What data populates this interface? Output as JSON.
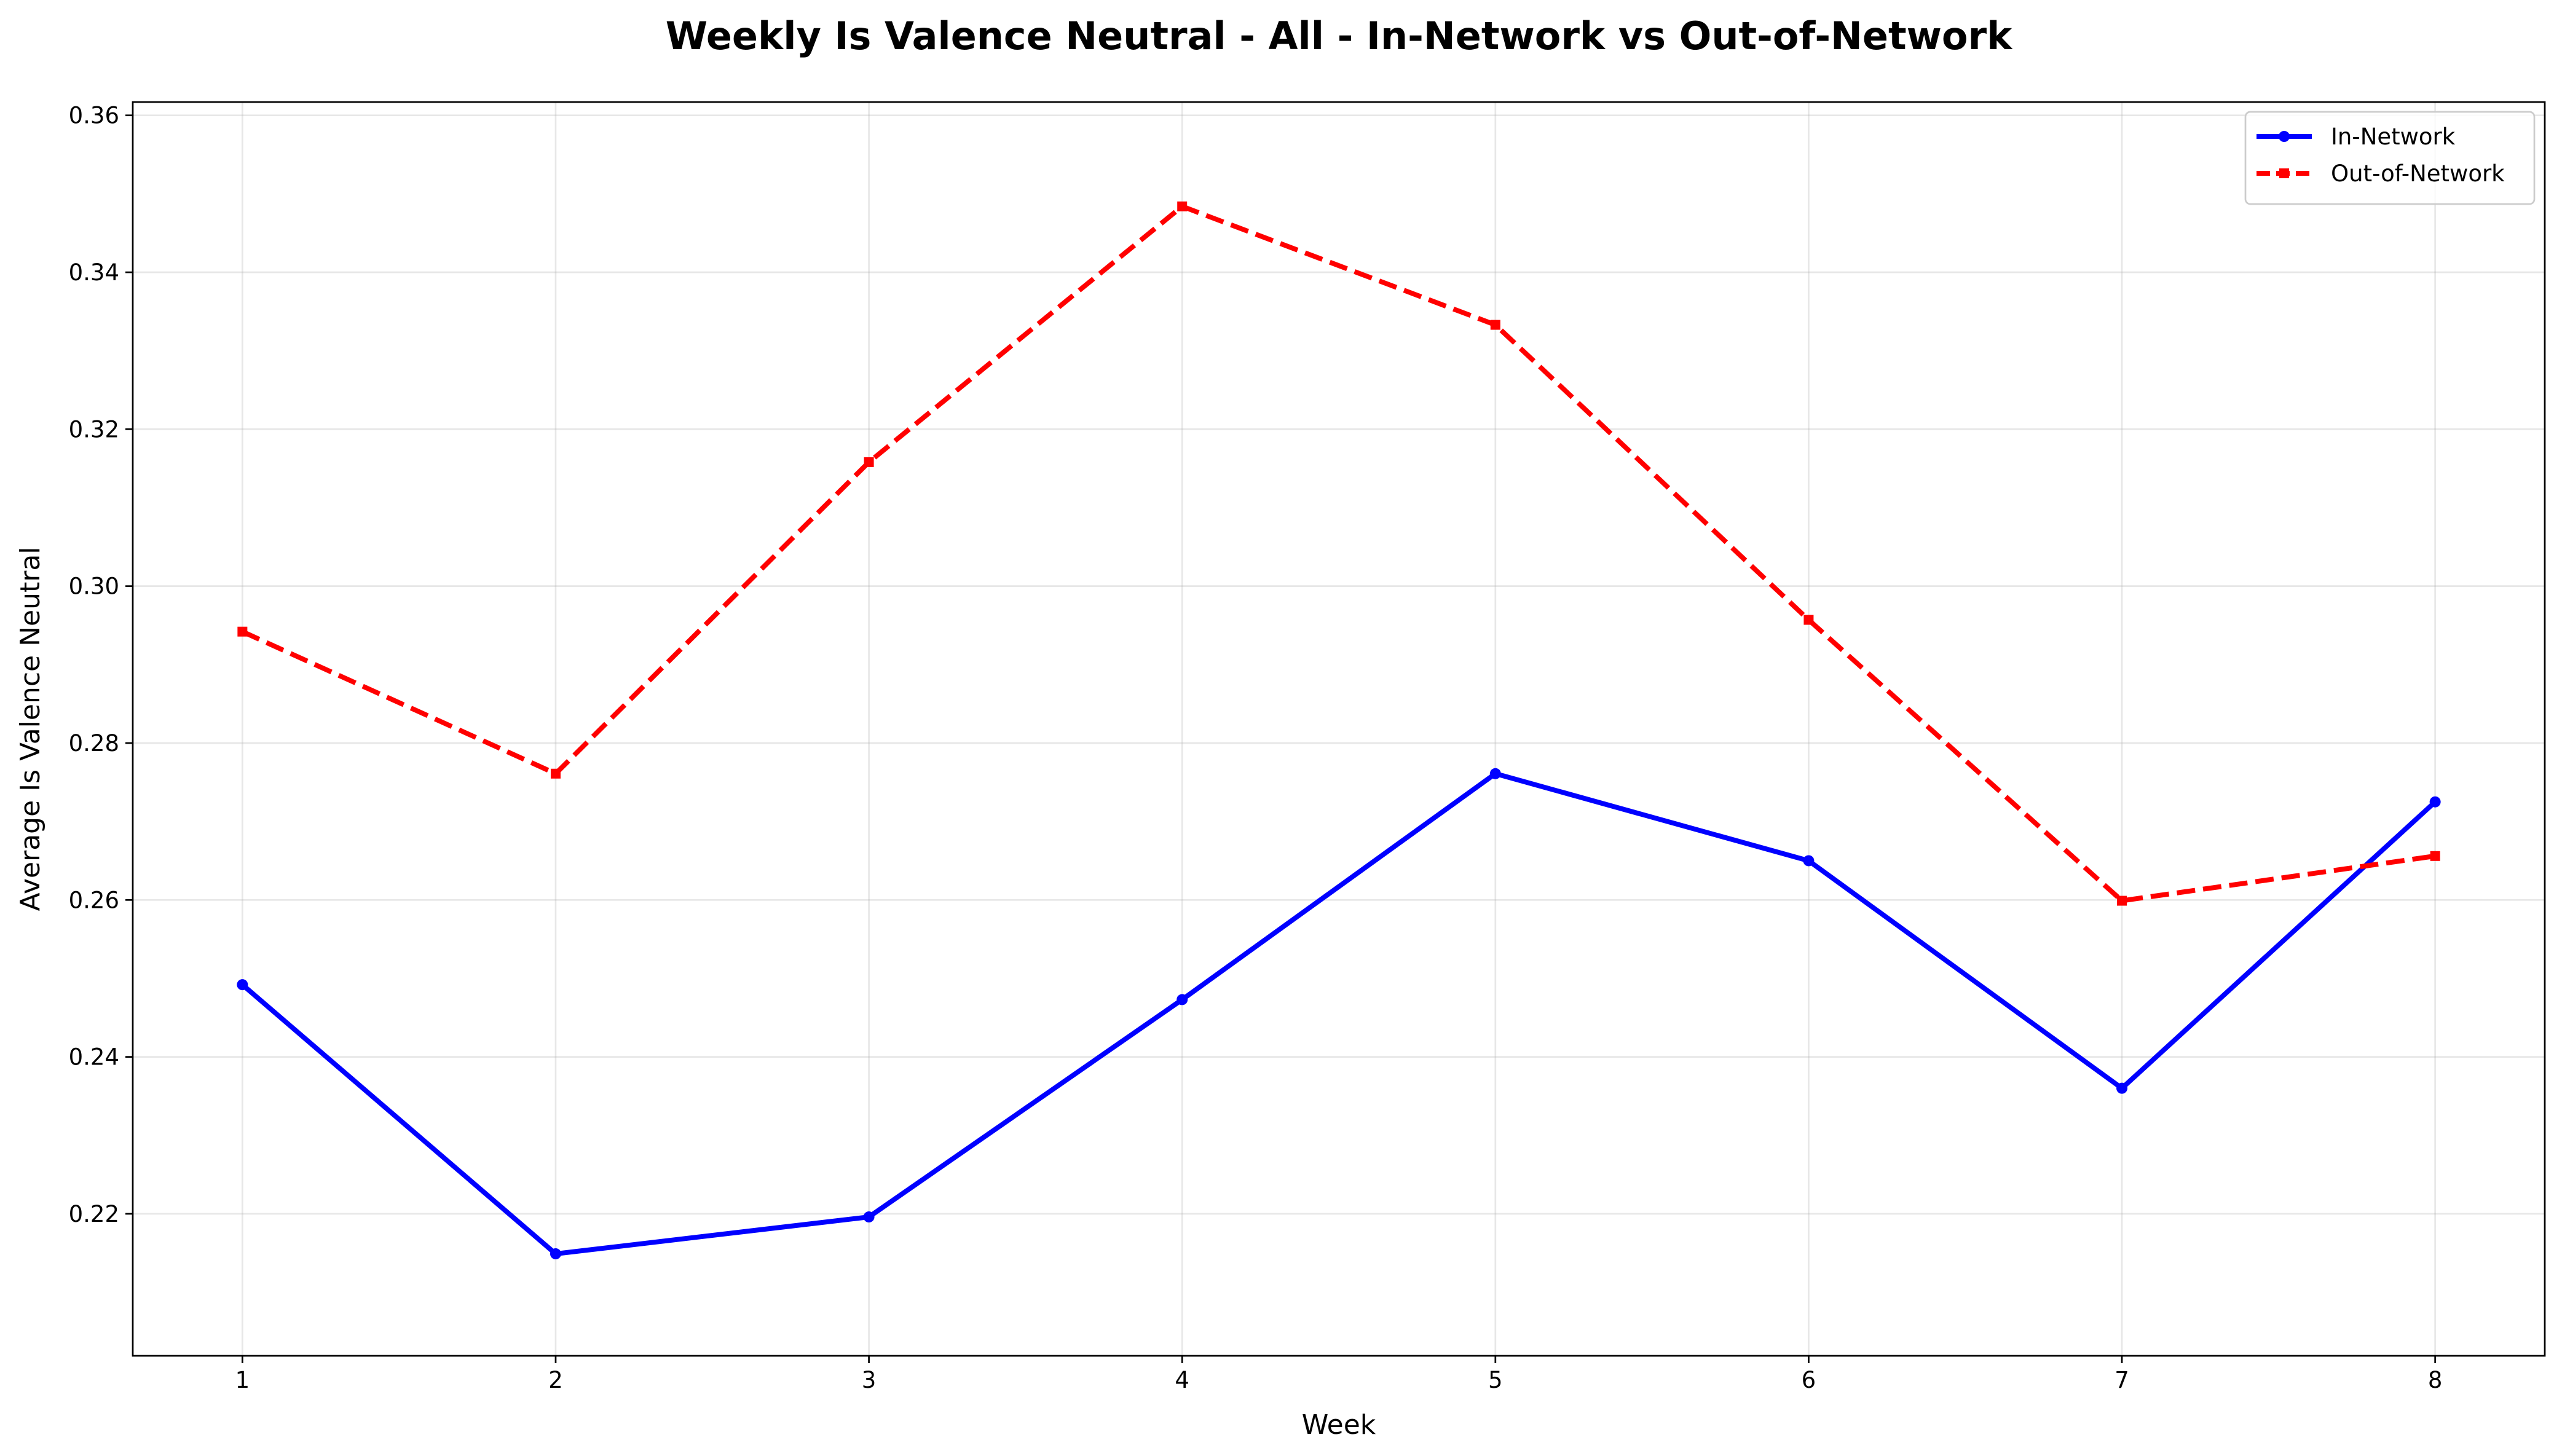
{
  "chart_data": {
    "type": "line",
    "title": "Weekly Is Valence Neutral - All - In-Network vs Out-of-Network",
    "xlabel": "Week",
    "ylabel": "Average Is Valence Neutral",
    "x": [
      1,
      2,
      3,
      4,
      5,
      6,
      7,
      8
    ],
    "x_tick_labels": [
      "1",
      "2",
      "3",
      "4",
      "5",
      "6",
      "7",
      "8"
    ],
    "xlim": [
      0.65,
      8.35
    ],
    "ylim": [
      0.2019,
      0.3617
    ],
    "y_ticks": [
      0.22,
      0.24,
      0.26,
      0.28,
      0.3,
      0.32,
      0.34,
      0.36
    ],
    "y_tick_labels": [
      "0.22",
      "0.24",
      "0.26",
      "0.28",
      "0.30",
      "0.32",
      "0.34",
      "0.36"
    ],
    "grid": true,
    "legend_position": "top-right",
    "series": [
      {
        "name": "In-Network",
        "color": "#0000ff",
        "line_style": "solid",
        "marker": "circle",
        "values": [
          0.2492,
          0.2149,
          0.2196,
          0.2473,
          0.2761,
          0.265,
          0.236,
          0.2725
        ]
      },
      {
        "name": "Out-of-Network",
        "color": "#ff0000",
        "line_style": "dashed",
        "marker": "square",
        "values": [
          0.2942,
          0.2761,
          0.3158,
          0.3484,
          0.3333,
          0.2957,
          0.2599,
          0.2656
        ]
      }
    ]
  }
}
